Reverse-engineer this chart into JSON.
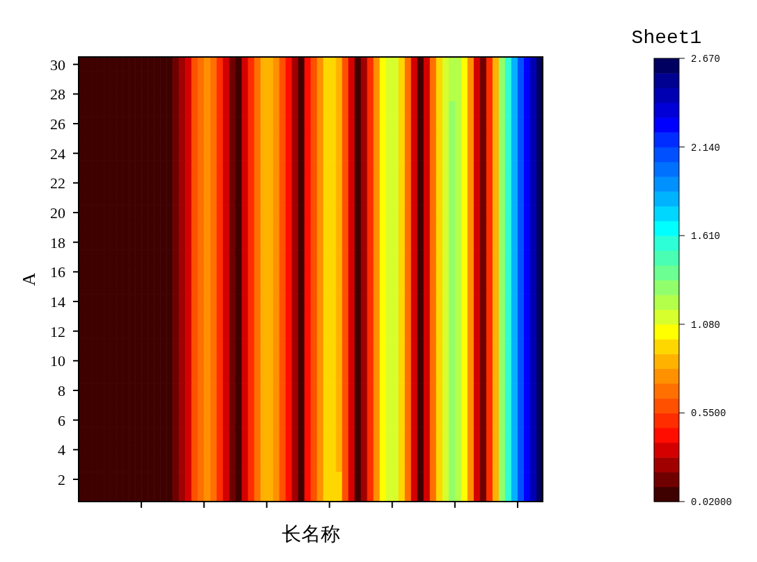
{
  "chart_data": {
    "type": "heatmap",
    "xlabel": "长名称",
    "ylabel": "A",
    "clabel": "Sheet1",
    "categories": [
      null,
      null,
      null,
      null,
      null,
      null,
      null,
      null,
      null,
      null,
      null,
      null,
      null,
      null,
      null,
      null,
      null,
      null,
      null,
      null,
      null,
      null,
      null,
      null,
      null,
      null,
      null,
      null,
      null,
      null,
      null,
      null,
      null,
      null,
      null,
      null,
      null,
      null,
      null,
      null,
      null,
      null,
      null,
      null,
      null,
      null,
      null,
      null,
      null,
      null,
      null,
      null,
      null,
      null,
      null,
      null,
      null,
      null,
      null,
      null,
      null,
      null,
      null,
      null,
      null,
      null,
      null,
      null,
      null,
      null,
      null,
      null,
      null,
      null
    ],
    "y_categories": [
      "30",
      null,
      "28",
      null,
      "26",
      null,
      "24",
      null,
      "22",
      null,
      "20",
      null,
      "18",
      null,
      "16",
      null,
      "14",
      null,
      "12",
      null,
      "10",
      null,
      "8",
      null,
      "6",
      null,
      "4",
      null,
      "2",
      null
    ],
    "clim": [
      0.02,
      2.67
    ],
    "cticks": [
      {
        "value": 0.02,
        "label": "0.02000"
      },
      {
        "value": 0.55,
        "label": "0.5500"
      },
      {
        "value": 1.08,
        "label": "1.080"
      },
      {
        "value": 1.61,
        "label": "1.610"
      },
      {
        "value": 2.14,
        "label": "2.140"
      },
      {
        "value": 2.67,
        "label": "2.670"
      }
    ],
    "cells": [
      [
        0.06,
        0.06,
        0.06,
        0.06,
        0.06,
        0.06,
        0.06,
        0.06,
        0.06,
        0.06,
        0.06,
        0.06,
        0.06,
        0.06,
        0.06,
        0.15,
        0.24,
        0.33,
        0.6,
        0.68,
        0.77,
        0.68,
        0.51,
        0.33,
        0.15,
        0.06,
        0.33,
        0.51,
        0.68,
        0.86,
        0.86,
        0.77,
        0.6,
        0.42,
        0.24,
        0.06,
        0.42,
        0.6,
        0.77,
        0.95,
        0.95,
        0.86,
        0.6,
        0.33,
        0.06,
        0.24,
        0.51,
        0.77,
        1.04,
        1.13,
        1.13,
        0.95,
        0.68,
        0.33,
        0.06,
        0.33,
        0.68,
        0.95,
        1.13,
        1.22,
        1.22,
        1.04,
        0.77,
        0.33,
        0.15,
        0.51,
        0.86,
        1.3,
        1.57,
        1.83,
        2.1,
        2.27,
        2.45,
        2.63
      ],
      [
        0.06,
        0.06,
        0.06,
        0.06,
        0.06,
        0.06,
        0.06,
        0.06,
        0.06,
        0.06,
        0.06,
        0.06,
        0.06,
        0.06,
        0.06,
        0.15,
        0.24,
        0.33,
        0.6,
        0.68,
        0.77,
        0.68,
        0.51,
        0.33,
        0.15,
        0.06,
        0.33,
        0.51,
        0.68,
        0.86,
        0.86,
        0.77,
        0.6,
        0.42,
        0.24,
        0.06,
        0.42,
        0.6,
        0.77,
        0.95,
        0.95,
        0.86,
        0.6,
        0.33,
        0.06,
        0.24,
        0.51,
        0.77,
        1.04,
        1.13,
        1.13,
        0.95,
        0.68,
        0.33,
        0.06,
        0.33,
        0.68,
        0.95,
        1.13,
        1.22,
        1.22,
        1.04,
        0.77,
        0.33,
        0.15,
        0.51,
        0.86,
        1.3,
        1.57,
        1.83,
        2.1,
        2.27,
        2.45,
        2.63
      ],
      [
        0.06,
        0.06,
        0.06,
        0.06,
        0.06,
        0.06,
        0.06,
        0.06,
        0.06,
        0.06,
        0.06,
        0.06,
        0.06,
        0.06,
        0.06,
        0.15,
        0.24,
        0.33,
        0.6,
        0.68,
        0.77,
        0.68,
        0.51,
        0.33,
        0.15,
        0.06,
        0.33,
        0.51,
        0.68,
        0.86,
        0.86,
        0.77,
        0.6,
        0.42,
        0.24,
        0.06,
        0.42,
        0.6,
        0.77,
        0.95,
        0.95,
        0.86,
        0.6,
        0.33,
        0.06,
        0.24,
        0.51,
        0.77,
        1.04,
        1.13,
        1.13,
        0.95,
        0.68,
        0.33,
        0.06,
        0.33,
        0.68,
        0.95,
        1.13,
        1.22,
        1.22,
        1.04,
        0.77,
        0.33,
        0.15,
        0.51,
        0.86,
        1.3,
        1.57,
        1.83,
        2.1,
        2.27,
        2.45,
        2.63
      ],
      [
        0.06,
        0.06,
        0.06,
        0.06,
        0.06,
        0.06,
        0.06,
        0.06,
        0.06,
        0.06,
        0.06,
        0.06,
        0.06,
        0.06,
        0.06,
        0.15,
        0.24,
        0.33,
        0.6,
        0.68,
        0.77,
        0.68,
        0.51,
        0.33,
        0.15,
        0.06,
        0.33,
        0.51,
        0.68,
        0.86,
        0.86,
        0.77,
        0.6,
        0.42,
        0.24,
        0.06,
        0.42,
        0.6,
        0.77,
        0.95,
        0.95,
        0.86,
        0.6,
        0.33,
        0.06,
        0.24,
        0.51,
        0.77,
        1.04,
        1.13,
        1.13,
        0.95,
        0.68,
        0.33,
        0.06,
        0.33,
        0.68,
        0.95,
        1.13,
        1.3,
        1.22,
        1.04,
        0.77,
        0.33,
        0.15,
        0.51,
        0.86,
        1.3,
        1.57,
        1.83,
        2.1,
        2.27,
        2.45,
        2.63
      ],
      [
        0.06,
        0.06,
        0.06,
        0.06,
        0.06,
        0.06,
        0.06,
        0.06,
        0.06,
        0.06,
        0.06,
        0.06,
        0.06,
        0.06,
        0.06,
        0.15,
        0.24,
        0.33,
        0.6,
        0.68,
        0.77,
        0.68,
        0.51,
        0.33,
        0.15,
        0.06,
        0.33,
        0.51,
        0.68,
        0.86,
        0.86,
        0.77,
        0.6,
        0.42,
        0.24,
        0.06,
        0.42,
        0.6,
        0.77,
        0.95,
        0.95,
        0.86,
        0.6,
        0.33,
        0.06,
        0.24,
        0.51,
        0.77,
        1.04,
        1.13,
        1.13,
        0.95,
        0.68,
        0.33,
        0.06,
        0.33,
        0.68,
        0.95,
        1.13,
        1.3,
        1.22,
        1.04,
        0.77,
        0.33,
        0.15,
        0.51,
        0.86,
        1.3,
        1.57,
        1.83,
        2.1,
        2.27,
        2.45,
        2.63
      ],
      [
        0.06,
        0.06,
        0.06,
        0.06,
        0.06,
        0.06,
        0.06,
        0.06,
        0.06,
        0.06,
        0.06,
        0.06,
        0.06,
        0.06,
        0.06,
        0.15,
        0.24,
        0.33,
        0.6,
        0.68,
        0.77,
        0.68,
        0.51,
        0.33,
        0.15,
        0.06,
        0.33,
        0.51,
        0.68,
        0.86,
        0.86,
        0.77,
        0.6,
        0.42,
        0.24,
        0.06,
        0.42,
        0.6,
        0.77,
        0.95,
        0.95,
        0.86,
        0.6,
        0.33,
        0.06,
        0.24,
        0.51,
        0.77,
        1.04,
        1.13,
        1.13,
        0.95,
        0.68,
        0.33,
        0.06,
        0.33,
        0.68,
        0.95,
        1.13,
        1.3,
        1.22,
        1.04,
        0.77,
        0.33,
        0.15,
        0.51,
        0.86,
        1.3,
        1.57,
        1.83,
        2.1,
        2.27,
        2.45,
        2.63
      ],
      [
        0.06,
        0.06,
        0.06,
        0.06,
        0.06,
        0.06,
        0.06,
        0.06,
        0.06,
        0.06,
        0.06,
        0.06,
        0.06,
        0.06,
        0.06,
        0.15,
        0.24,
        0.33,
        0.6,
        0.68,
        0.77,
        0.68,
        0.51,
        0.33,
        0.15,
        0.06,
        0.33,
        0.51,
        0.68,
        0.86,
        0.86,
        0.77,
        0.6,
        0.42,
        0.24,
        0.06,
        0.42,
        0.6,
        0.77,
        0.95,
        0.95,
        0.86,
        0.6,
        0.33,
        0.06,
        0.24,
        0.51,
        0.77,
        1.04,
        1.13,
        1.13,
        0.95,
        0.68,
        0.33,
        0.06,
        0.33,
        0.68,
        0.95,
        1.13,
        1.3,
        1.22,
        1.04,
        0.77,
        0.33,
        0.15,
        0.51,
        0.86,
        1.3,
        1.57,
        1.83,
        2.1,
        2.27,
        2.45,
        2.63
      ],
      [
        0.06,
        0.06,
        0.06,
        0.06,
        0.06,
        0.06,
        0.06,
        0.06,
        0.06,
        0.06,
        0.06,
        0.06,
        0.06,
        0.06,
        0.06,
        0.15,
        0.24,
        0.33,
        0.6,
        0.68,
        0.77,
        0.68,
        0.51,
        0.33,
        0.15,
        0.06,
        0.33,
        0.51,
        0.68,
        0.86,
        0.86,
        0.77,
        0.6,
        0.42,
        0.24,
        0.06,
        0.42,
        0.6,
        0.77,
        0.95,
        0.95,
        0.86,
        0.6,
        0.33,
        0.06,
        0.24,
        0.51,
        0.77,
        1.04,
        1.13,
        1.13,
        0.95,
        0.68,
        0.33,
        0.06,
        0.33,
        0.68,
        0.95,
        1.13,
        1.3,
        1.22,
        1.04,
        0.77,
        0.33,
        0.15,
        0.51,
        0.86,
        1.3,
        1.57,
        1.83,
        2.1,
        2.27,
        2.45,
        2.63
      ],
      [
        0.06,
        0.06,
        0.06,
        0.06,
        0.06,
        0.06,
        0.06,
        0.06,
        0.06,
        0.06,
        0.06,
        0.06,
        0.06,
        0.06,
        0.06,
        0.15,
        0.24,
        0.33,
        0.6,
        0.68,
        0.77,
        0.68,
        0.51,
        0.33,
        0.15,
        0.06,
        0.33,
        0.51,
        0.68,
        0.86,
        0.86,
        0.77,
        0.6,
        0.42,
        0.24,
        0.06,
        0.42,
        0.6,
        0.77,
        0.95,
        0.95,
        0.86,
        0.6,
        0.33,
        0.06,
        0.24,
        0.51,
        0.77,
        1.04,
        1.13,
        1.13,
        0.95,
        0.68,
        0.33,
        0.06,
        0.33,
        0.68,
        0.95,
        1.13,
        1.3,
        1.22,
        1.04,
        0.77,
        0.33,
        0.15,
        0.51,
        0.86,
        1.3,
        1.57,
        1.83,
        2.1,
        2.27,
        2.45,
        2.63
      ],
      [
        0.06,
        0.06,
        0.06,
        0.06,
        0.06,
        0.06,
        0.06,
        0.06,
        0.06,
        0.06,
        0.06,
        0.06,
        0.06,
        0.06,
        0.06,
        0.15,
        0.24,
        0.33,
        0.6,
        0.68,
        0.77,
        0.68,
        0.51,
        0.33,
        0.15,
        0.06,
        0.33,
        0.51,
        0.68,
        0.86,
        0.86,
        0.77,
        0.6,
        0.42,
        0.24,
        0.06,
        0.42,
        0.6,
        0.77,
        0.95,
        0.95,
        0.86,
        0.6,
        0.33,
        0.06,
        0.24,
        0.51,
        0.77,
        1.04,
        1.13,
        1.13,
        0.95,
        0.68,
        0.33,
        0.06,
        0.33,
        0.68,
        0.95,
        1.13,
        1.3,
        1.22,
        1.04,
        0.77,
        0.33,
        0.15,
        0.51,
        0.86,
        1.3,
        1.57,
        1.83,
        2.1,
        2.27,
        2.45,
        2.63
      ],
      [
        0.06,
        0.06,
        0.06,
        0.06,
        0.06,
        0.06,
        0.06,
        0.06,
        0.06,
        0.06,
        0.06,
        0.06,
        0.06,
        0.06,
        0.06,
        0.15,
        0.24,
        0.33,
        0.6,
        0.68,
        0.77,
        0.68,
        0.51,
        0.33,
        0.15,
        0.06,
        0.33,
        0.51,
        0.68,
        0.86,
        0.86,
        0.77,
        0.6,
        0.42,
        0.24,
        0.06,
        0.42,
        0.6,
        0.77,
        0.95,
        0.95,
        0.86,
        0.6,
        0.33,
        0.06,
        0.24,
        0.51,
        0.77,
        1.04,
        1.13,
        1.13,
        0.95,
        0.68,
        0.33,
        0.06,
        0.33,
        0.68,
        0.95,
        1.13,
        1.3,
        1.22,
        1.04,
        0.77,
        0.33,
        0.15,
        0.51,
        0.86,
        1.3,
        1.57,
        1.83,
        2.1,
        2.27,
        2.45,
        2.63
      ],
      [
        0.06,
        0.06,
        0.06,
        0.06,
        0.06,
        0.06,
        0.06,
        0.06,
        0.06,
        0.06,
        0.06,
        0.06,
        0.06,
        0.06,
        0.06,
        0.15,
        0.24,
        0.33,
        0.6,
        0.68,
        0.77,
        0.68,
        0.51,
        0.33,
        0.15,
        0.06,
        0.33,
        0.51,
        0.68,
        0.86,
        0.86,
        0.77,
        0.6,
        0.42,
        0.24,
        0.06,
        0.42,
        0.6,
        0.77,
        0.95,
        0.95,
        0.86,
        0.6,
        0.33,
        0.06,
        0.24,
        0.51,
        0.77,
        1.04,
        1.13,
        1.13,
        0.95,
        0.68,
        0.33,
        0.06,
        0.33,
        0.68,
        0.95,
        1.13,
        1.3,
        1.22,
        1.04,
        0.77,
        0.33,
        0.15,
        0.51,
        0.86,
        1.3,
        1.57,
        1.83,
        2.1,
        2.27,
        2.45,
        2.63
      ],
      [
        0.06,
        0.06,
        0.06,
        0.06,
        0.06,
        0.06,
        0.06,
        0.06,
        0.06,
        0.06,
        0.06,
        0.06,
        0.06,
        0.06,
        0.06,
        0.15,
        0.24,
        0.33,
        0.6,
        0.68,
        0.77,
        0.68,
        0.51,
        0.33,
        0.15,
        0.06,
        0.33,
        0.51,
        0.68,
        0.86,
        0.86,
        0.77,
        0.6,
        0.42,
        0.24,
        0.06,
        0.42,
        0.6,
        0.77,
        0.95,
        0.95,
        0.86,
        0.6,
        0.33,
        0.06,
        0.24,
        0.51,
        0.77,
        1.04,
        1.13,
        1.13,
        0.95,
        0.68,
        0.33,
        0.06,
        0.33,
        0.68,
        0.95,
        1.13,
        1.3,
        1.22,
        1.04,
        0.77,
        0.33,
        0.15,
        0.51,
        0.86,
        1.3,
        1.57,
        1.83,
        2.1,
        2.27,
        2.45,
        2.63
      ],
      [
        0.06,
        0.06,
        0.06,
        0.06,
        0.06,
        0.06,
        0.06,
        0.06,
        0.06,
        0.06,
        0.06,
        0.06,
        0.06,
        0.06,
        0.06,
        0.15,
        0.24,
        0.33,
        0.6,
        0.68,
        0.77,
        0.68,
        0.51,
        0.33,
        0.15,
        0.06,
        0.33,
        0.51,
        0.68,
        0.86,
        0.86,
        0.77,
        0.6,
        0.42,
        0.24,
        0.06,
        0.42,
        0.6,
        0.77,
        0.95,
        0.95,
        0.86,
        0.6,
        0.33,
        0.06,
        0.24,
        0.51,
        0.77,
        1.04,
        1.13,
        1.13,
        0.95,
        0.68,
        0.33,
        0.06,
        0.33,
        0.68,
        0.95,
        1.13,
        1.3,
        1.22,
        1.04,
        0.77,
        0.33,
        0.15,
        0.51,
        0.86,
        1.3,
        1.57,
        1.83,
        2.1,
        2.27,
        2.45,
        2.63
      ],
      [
        0.06,
        0.06,
        0.06,
        0.06,
        0.06,
        0.06,
        0.06,
        0.06,
        0.06,
        0.06,
        0.06,
        0.06,
        0.06,
        0.06,
        0.06,
        0.15,
        0.24,
        0.33,
        0.6,
        0.68,
        0.77,
        0.68,
        0.51,
        0.33,
        0.15,
        0.06,
        0.33,
        0.51,
        0.68,
        0.86,
        0.86,
        0.77,
        0.6,
        0.42,
        0.24,
        0.06,
        0.42,
        0.6,
        0.77,
        0.95,
        0.95,
        0.86,
        0.6,
        0.33,
        0.06,
        0.24,
        0.51,
        0.77,
        1.04,
        1.13,
        1.13,
        0.95,
        0.68,
        0.33,
        0.06,
        0.33,
        0.68,
        0.95,
        1.13,
        1.3,
        1.22,
        1.04,
        0.77,
        0.33,
        0.15,
        0.51,
        0.86,
        1.3,
        1.57,
        1.83,
        2.1,
        2.27,
        2.45,
        2.63
      ],
      [
        0.06,
        0.06,
        0.06,
        0.06,
        0.06,
        0.06,
        0.06,
        0.06,
        0.06,
        0.06,
        0.06,
        0.06,
        0.06,
        0.06,
        0.06,
        0.15,
        0.24,
        0.33,
        0.6,
        0.68,
        0.77,
        0.68,
        0.51,
        0.33,
        0.15,
        0.06,
        0.33,
        0.51,
        0.68,
        0.86,
        0.86,
        0.77,
        0.6,
        0.42,
        0.24,
        0.06,
        0.42,
        0.6,
        0.77,
        0.95,
        0.95,
        0.86,
        0.6,
        0.33,
        0.06,
        0.24,
        0.51,
        0.77,
        1.04,
        1.13,
        1.13,
        0.95,
        0.68,
        0.33,
        0.06,
        0.33,
        0.68,
        0.95,
        1.13,
        1.3,
        1.22,
        1.04,
        0.77,
        0.33,
        0.15,
        0.51,
        0.86,
        1.3,
        1.57,
        1.83,
        2.1,
        2.27,
        2.45,
        2.63
      ],
      [
        0.06,
        0.06,
        0.06,
        0.06,
        0.06,
        0.06,
        0.06,
        0.06,
        0.06,
        0.06,
        0.06,
        0.06,
        0.06,
        0.06,
        0.06,
        0.15,
        0.24,
        0.33,
        0.6,
        0.68,
        0.77,
        0.68,
        0.51,
        0.33,
        0.15,
        0.06,
        0.33,
        0.51,
        0.68,
        0.86,
        0.86,
        0.77,
        0.6,
        0.42,
        0.24,
        0.06,
        0.42,
        0.6,
        0.77,
        0.95,
        0.95,
        0.86,
        0.6,
        0.33,
        0.06,
        0.24,
        0.51,
        0.77,
        1.04,
        1.13,
        1.13,
        0.95,
        0.68,
        0.33,
        0.06,
        0.33,
        0.68,
        0.95,
        1.13,
        1.3,
        1.22,
        1.04,
        0.77,
        0.33,
        0.15,
        0.51,
        0.86,
        1.3,
        1.57,
        1.83,
        2.1,
        2.27,
        2.45,
        2.63
      ],
      [
        0.06,
        0.06,
        0.06,
        0.06,
        0.06,
        0.06,
        0.06,
        0.06,
        0.06,
        0.06,
        0.06,
        0.06,
        0.06,
        0.06,
        0.06,
        0.15,
        0.24,
        0.33,
        0.6,
        0.68,
        0.77,
        0.68,
        0.51,
        0.33,
        0.15,
        0.06,
        0.33,
        0.51,
        0.68,
        0.86,
        0.86,
        0.77,
        0.6,
        0.42,
        0.24,
        0.06,
        0.42,
        0.6,
        0.77,
        0.95,
        0.95,
        0.86,
        0.6,
        0.33,
        0.06,
        0.24,
        0.51,
        0.77,
        1.04,
        1.13,
        1.13,
        0.95,
        0.68,
        0.33,
        0.06,
        0.33,
        0.68,
        0.95,
        1.13,
        1.3,
        1.22,
        1.04,
        0.77,
        0.33,
        0.15,
        0.51,
        0.86,
        1.3,
        1.57,
        1.83,
        2.1,
        2.27,
        2.45,
        2.63
      ],
      [
        0.06,
        0.06,
        0.06,
        0.06,
        0.06,
        0.06,
        0.06,
        0.06,
        0.06,
        0.06,
        0.06,
        0.06,
        0.06,
        0.06,
        0.06,
        0.15,
        0.24,
        0.33,
        0.6,
        0.68,
        0.77,
        0.68,
        0.51,
        0.33,
        0.15,
        0.06,
        0.33,
        0.51,
        0.68,
        0.86,
        0.86,
        0.77,
        0.6,
        0.42,
        0.24,
        0.06,
        0.42,
        0.6,
        0.77,
        0.95,
        0.95,
        0.86,
        0.6,
        0.33,
        0.06,
        0.24,
        0.51,
        0.77,
        1.04,
        1.13,
        1.13,
        0.95,
        0.68,
        0.33,
        0.06,
        0.33,
        0.68,
        0.95,
        1.13,
        1.3,
        1.22,
        1.04,
        0.77,
        0.33,
        0.15,
        0.51,
        0.86,
        1.3,
        1.57,
        1.83,
        2.1,
        2.27,
        2.45,
        2.63
      ],
      [
        0.06,
        0.06,
        0.06,
        0.06,
        0.06,
        0.06,
        0.06,
        0.06,
        0.06,
        0.06,
        0.06,
        0.06,
        0.06,
        0.06,
        0.06,
        0.15,
        0.24,
        0.33,
        0.6,
        0.68,
        0.77,
        0.68,
        0.51,
        0.33,
        0.15,
        0.06,
        0.33,
        0.51,
        0.68,
        0.86,
        0.86,
        0.77,
        0.6,
        0.42,
        0.24,
        0.06,
        0.42,
        0.6,
        0.77,
        0.95,
        0.95,
        0.86,
        0.6,
        0.33,
        0.06,
        0.24,
        0.51,
        0.77,
        1.04,
        1.13,
        1.13,
        0.95,
        0.68,
        0.33,
        0.06,
        0.33,
        0.68,
        0.95,
        1.13,
        1.3,
        1.22,
        1.04,
        0.77,
        0.33,
        0.15,
        0.51,
        0.86,
        1.3,
        1.57,
        1.83,
        2.1,
        2.27,
        2.45,
        2.63
      ],
      [
        0.06,
        0.06,
        0.06,
        0.06,
        0.06,
        0.06,
        0.06,
        0.06,
        0.06,
        0.06,
        0.06,
        0.06,
        0.06,
        0.06,
        0.06,
        0.15,
        0.24,
        0.33,
        0.6,
        0.68,
        0.77,
        0.68,
        0.51,
        0.33,
        0.15,
        0.06,
        0.33,
        0.51,
        0.68,
        0.86,
        0.86,
        0.77,
        0.6,
        0.42,
        0.24,
        0.06,
        0.42,
        0.6,
        0.77,
        0.95,
        0.95,
        0.86,
        0.6,
        0.33,
        0.06,
        0.24,
        0.51,
        0.77,
        1.04,
        1.13,
        1.13,
        0.95,
        0.68,
        0.33,
        0.06,
        0.33,
        0.68,
        0.95,
        1.13,
        1.3,
        1.22,
        1.04,
        0.77,
        0.33,
        0.15,
        0.51,
        0.86,
        1.3,
        1.57,
        1.83,
        2.1,
        2.27,
        2.45,
        2.63
      ],
      [
        0.06,
        0.06,
        0.06,
        0.06,
        0.06,
        0.06,
        0.06,
        0.06,
        0.06,
        0.06,
        0.06,
        0.06,
        0.06,
        0.06,
        0.06,
        0.15,
        0.24,
        0.33,
        0.6,
        0.68,
        0.77,
        0.68,
        0.51,
        0.33,
        0.15,
        0.06,
        0.33,
        0.51,
        0.68,
        0.86,
        0.86,
        0.77,
        0.6,
        0.42,
        0.24,
        0.06,
        0.42,
        0.6,
        0.77,
        0.95,
        0.95,
        0.86,
        0.6,
        0.33,
        0.06,
        0.24,
        0.51,
        0.77,
        1.04,
        1.13,
        1.13,
        0.95,
        0.68,
        0.33,
        0.06,
        0.33,
        0.68,
        0.95,
        1.13,
        1.3,
        1.22,
        1.04,
        0.77,
        0.33,
        0.15,
        0.51,
        0.86,
        1.3,
        1.57,
        1.83,
        2.1,
        2.27,
        2.45,
        2.63
      ],
      [
        0.06,
        0.06,
        0.06,
        0.06,
        0.06,
        0.06,
        0.06,
        0.06,
        0.06,
        0.06,
        0.06,
        0.06,
        0.06,
        0.06,
        0.06,
        0.15,
        0.24,
        0.33,
        0.6,
        0.68,
        0.77,
        0.68,
        0.51,
        0.33,
        0.15,
        0.06,
        0.33,
        0.51,
        0.68,
        0.86,
        0.86,
        0.77,
        0.6,
        0.42,
        0.24,
        0.06,
        0.42,
        0.6,
        0.77,
        0.95,
        0.95,
        0.86,
        0.6,
        0.33,
        0.06,
        0.24,
        0.51,
        0.77,
        1.04,
        1.13,
        1.13,
        0.95,
        0.68,
        0.33,
        0.06,
        0.33,
        0.68,
        0.95,
        1.13,
        1.3,
        1.22,
        1.04,
        0.77,
        0.33,
        0.15,
        0.51,
        0.86,
        1.3,
        1.57,
        1.83,
        2.1,
        2.27,
        2.45,
        2.63
      ],
      [
        0.06,
        0.06,
        0.06,
        0.06,
        0.06,
        0.06,
        0.06,
        0.06,
        0.06,
        0.06,
        0.06,
        0.06,
        0.06,
        0.06,
        0.06,
        0.15,
        0.24,
        0.33,
        0.6,
        0.68,
        0.77,
        0.68,
        0.51,
        0.33,
        0.15,
        0.06,
        0.33,
        0.51,
        0.68,
        0.86,
        0.86,
        0.77,
        0.6,
        0.42,
        0.24,
        0.06,
        0.42,
        0.6,
        0.77,
        0.95,
        0.95,
        0.86,
        0.6,
        0.33,
        0.06,
        0.24,
        0.51,
        0.77,
        1.04,
        1.13,
        1.13,
        0.95,
        0.68,
        0.33,
        0.06,
        0.33,
        0.68,
        0.95,
        1.13,
        1.3,
        1.22,
        1.04,
        0.77,
        0.33,
        0.15,
        0.51,
        0.86,
        1.3,
        1.57,
        1.83,
        2.1,
        2.27,
        2.45,
        2.63
      ],
      [
        0.06,
        0.06,
        0.06,
        0.06,
        0.06,
        0.06,
        0.06,
        0.06,
        0.06,
        0.06,
        0.06,
        0.06,
        0.06,
        0.06,
        0.06,
        0.15,
        0.24,
        0.33,
        0.6,
        0.68,
        0.77,
        0.68,
        0.51,
        0.33,
        0.15,
        0.06,
        0.33,
        0.51,
        0.68,
        0.86,
        0.86,
        0.77,
        0.6,
        0.42,
        0.24,
        0.06,
        0.42,
        0.6,
        0.77,
        0.95,
        0.95,
        0.86,
        0.6,
        0.33,
        0.06,
        0.24,
        0.51,
        0.77,
        1.04,
        1.13,
        1.13,
        0.95,
        0.68,
        0.33,
        0.06,
        0.33,
        0.68,
        0.95,
        1.13,
        1.3,
        1.22,
        1.04,
        0.77,
        0.33,
        0.15,
        0.51,
        0.86,
        1.3,
        1.57,
        1.83,
        2.1,
        2.27,
        2.45,
        2.63
      ],
      [
        0.06,
        0.06,
        0.06,
        0.06,
        0.06,
        0.06,
        0.06,
        0.06,
        0.06,
        0.06,
        0.06,
        0.06,
        0.06,
        0.06,
        0.06,
        0.15,
        0.24,
        0.33,
        0.6,
        0.68,
        0.77,
        0.68,
        0.51,
        0.33,
        0.15,
        0.06,
        0.33,
        0.51,
        0.68,
        0.86,
        0.86,
        0.77,
        0.6,
        0.42,
        0.24,
        0.06,
        0.42,
        0.6,
        0.77,
        0.95,
        0.95,
        0.86,
        0.6,
        0.33,
        0.06,
        0.24,
        0.51,
        0.77,
        1.04,
        1.13,
        1.13,
        0.95,
        0.68,
        0.33,
        0.06,
        0.33,
        0.68,
        0.95,
        1.13,
        1.3,
        1.22,
        1.04,
        0.77,
        0.33,
        0.15,
        0.51,
        0.86,
        1.3,
        1.57,
        1.83,
        2.1,
        2.27,
        2.45,
        2.63
      ],
      [
        0.06,
        0.06,
        0.06,
        0.06,
        0.06,
        0.06,
        0.06,
        0.06,
        0.06,
        0.06,
        0.06,
        0.06,
        0.06,
        0.06,
        0.06,
        0.15,
        0.24,
        0.33,
        0.6,
        0.68,
        0.77,
        0.68,
        0.51,
        0.33,
        0.15,
        0.06,
        0.33,
        0.51,
        0.68,
        0.86,
        0.86,
        0.77,
        0.6,
        0.42,
        0.24,
        0.06,
        0.42,
        0.6,
        0.77,
        0.95,
        0.95,
        0.86,
        0.6,
        0.33,
        0.06,
        0.24,
        0.51,
        0.77,
        1.04,
        1.13,
        1.13,
        0.95,
        0.68,
        0.33,
        0.06,
        0.33,
        0.68,
        0.95,
        1.13,
        1.3,
        1.22,
        1.04,
        0.77,
        0.33,
        0.15,
        0.51,
        0.86,
        1.3,
        1.57,
        1.83,
        2.1,
        2.27,
        2.45,
        2.63
      ],
      [
        0.06,
        0.06,
        0.06,
        0.06,
        0.06,
        0.06,
        0.06,
        0.06,
        0.06,
        0.06,
        0.06,
        0.06,
        0.06,
        0.06,
        0.06,
        0.15,
        0.24,
        0.33,
        0.6,
        0.68,
        0.77,
        0.68,
        0.51,
        0.33,
        0.15,
        0.06,
        0.33,
        0.51,
        0.68,
        0.86,
        0.86,
        0.77,
        0.6,
        0.42,
        0.24,
        0.06,
        0.42,
        0.6,
        0.77,
        0.95,
        0.95,
        0.86,
        0.6,
        0.33,
        0.06,
        0.24,
        0.51,
        0.77,
        1.04,
        1.13,
        1.13,
        0.95,
        0.68,
        0.33,
        0.06,
        0.33,
        0.68,
        0.95,
        1.13,
        1.3,
        1.22,
        1.04,
        0.77,
        0.33,
        0.15,
        0.51,
        0.86,
        1.3,
        1.57,
        1.83,
        2.1,
        2.27,
        2.45,
        2.63
      ],
      [
        0.06,
        0.06,
        0.06,
        0.06,
        0.06,
        0.06,
        0.06,
        0.06,
        0.06,
        0.06,
        0.06,
        0.06,
        0.06,
        0.06,
        0.06,
        0.15,
        0.24,
        0.33,
        0.6,
        0.68,
        0.77,
        0.68,
        0.51,
        0.33,
        0.15,
        0.06,
        0.33,
        0.51,
        0.68,
        0.86,
        0.86,
        0.77,
        0.6,
        0.42,
        0.24,
        0.06,
        0.42,
        0.6,
        0.77,
        0.95,
        0.95,
        0.95,
        0.6,
        0.33,
        0.06,
        0.24,
        0.51,
        0.77,
        1.04,
        1.13,
        1.13,
        0.95,
        0.68,
        0.33,
        0.06,
        0.33,
        0.68,
        0.95,
        1.13,
        1.3,
        1.22,
        1.04,
        0.77,
        0.33,
        0.15,
        0.51,
        0.86,
        1.3,
        1.57,
        1.83,
        2.1,
        2.27,
        2.45,
        2.63
      ],
      [
        0.06,
        0.06,
        0.06,
        0.06,
        0.06,
        0.06,
        0.06,
        0.06,
        0.06,
        0.06,
        0.06,
        0.06,
        0.06,
        0.06,
        0.06,
        0.15,
        0.24,
        0.33,
        0.6,
        0.68,
        0.77,
        0.68,
        0.51,
        0.33,
        0.15,
        0.06,
        0.33,
        0.51,
        0.68,
        0.86,
        0.86,
        0.77,
        0.6,
        0.42,
        0.24,
        0.06,
        0.42,
        0.6,
        0.77,
        0.95,
        0.95,
        0.95,
        0.6,
        0.33,
        0.06,
        0.24,
        0.51,
        0.77,
        1.04,
        1.13,
        1.13,
        0.95,
        0.68,
        0.33,
        0.06,
        0.33,
        0.68,
        0.95,
        1.13,
        1.3,
        1.22,
        1.04,
        0.77,
        0.33,
        0.15,
        0.51,
        0.86,
        1.3,
        1.57,
        1.83,
        2.1,
        2.27,
        2.45,
        2.63
      ]
    ]
  }
}
